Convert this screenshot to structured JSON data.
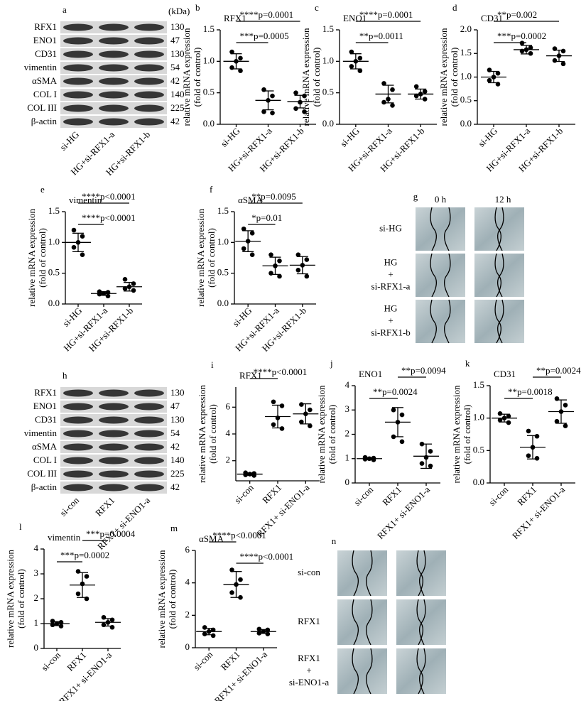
{
  "blots": [
    {
      "panel": "a",
      "unit": "(kDa)",
      "rows": [
        "RFX1",
        "ENO1",
        "CD31",
        "vimentin",
        "αSMA",
        "COL I",
        "COL III",
        "β-actin"
      ],
      "kda": [
        "130",
        "47",
        "130",
        "54",
        "42",
        "140",
        "225",
        "42"
      ],
      "lanes": [
        "si-HG",
        "HG+si-RFX1-a",
        "HG+si-RFX1-b"
      ]
    },
    {
      "panel": "h",
      "rows": [
        "RFX1",
        "ENO1",
        "CD31",
        "vimentin",
        "αSMA",
        "COL I",
        "COL III",
        "β-actin"
      ],
      "kda": [
        "130",
        "47",
        "130",
        "54",
        "42",
        "140",
        "225",
        "42"
      ],
      "lanes": [
        "si-con",
        "RFX1",
        "RFX1+ si-ENO1-a"
      ]
    }
  ],
  "scratch": [
    {
      "panel": "g",
      "times": [
        "0 h",
        "12 h"
      ],
      "rows": [
        [
          "si-HG"
        ],
        [
          "HG",
          "+",
          "si-RFX1-a"
        ],
        [
          "HG",
          "+",
          "si-RFX1-b"
        ]
      ]
    },
    {
      "panel": "n",
      "rows": [
        [
          "si-con"
        ],
        [
          "RFX1"
        ],
        [
          "RFX1",
          "+",
          "si-ENO1-a"
        ]
      ]
    }
  ],
  "chart_data": [
    {
      "type": "dot",
      "panel": "b",
      "title": "RFX1",
      "y_label": [
        "relative mRNA expression",
        "(fold of control)"
      ],
      "color": "#000000",
      "categories": [
        "si-HG",
        "HG+si-RFX1-a",
        "HG+si-RFX1-b"
      ],
      "values": [
        1.0,
        0.38,
        0.36
      ],
      "errors": [
        0.12,
        0.15,
        0.1
      ],
      "points": [
        [
          1.15,
          1.05,
          1.0,
          0.9,
          0.85
        ],
        [
          0.55,
          0.45,
          0.38,
          0.2,
          0.18
        ],
        [
          0.5,
          0.45,
          0.35,
          0.25,
          0.2
        ]
      ],
      "ylim": [
        0,
        1.5
      ],
      "yticks": [
        {
          "value": 0,
          "label": "0.0"
        },
        0.5,
        {
          "value": 1,
          "label": "1.0"
        },
        1.5
      ],
      "annotations": [
        "****p=0.0001",
        "***p=0.0005"
      ]
    },
    {
      "type": "dot",
      "panel": "c",
      "title": "ENO1",
      "y_label": [
        "relative mRNA expression",
        "(fold of control)"
      ],
      "color": "#000000",
      "categories": [
        "si-HG",
        "HG+si-RFX1-a",
        "HG+si-RFX1-b"
      ],
      "values": [
        1.0,
        0.48,
        0.48
      ],
      "errors": [
        0.12,
        0.14,
        0.08
      ],
      "points": [
        [
          1.15,
          1.05,
          1.0,
          0.92,
          0.85
        ],
        [
          0.65,
          0.55,
          0.4,
          0.35,
          0.3
        ],
        [
          0.6,
          0.52,
          0.48,
          0.45,
          0.4
        ]
      ],
      "ylim": [
        0,
        1.5
      ],
      "yticks": [
        {
          "value": 0,
          "label": "0.0"
        },
        0.5,
        {
          "value": 1,
          "label": "1.0"
        },
        1.5
      ],
      "annotations": [
        "****p=0.0001",
        "**p=0.0011"
      ]
    },
    {
      "type": "dot",
      "panel": "d",
      "title": "CD31",
      "y_label": [
        "relative mRNA expression",
        "(fold of control)"
      ],
      "color": "#000000",
      "categories": [
        "si-HG",
        "HG+si-RFX1-a",
        "HG+si-RFX1-b"
      ],
      "values": [
        1.0,
        1.58,
        1.45
      ],
      "errors": [
        0.12,
        0.09,
        0.12
      ],
      "points": [
        [
          1.15,
          1.08,
          1.0,
          0.93,
          0.85
        ],
        [
          1.72,
          1.62,
          1.58,
          1.55,
          1.5
        ],
        [
          1.6,
          1.55,
          1.45,
          1.35,
          1.28
        ]
      ],
      "ylim": [
        0,
        2
      ],
      "yticks": [
        {
          "value": 0,
          "label": "0.0"
        },
        0.5,
        {
          "value": 1,
          "label": "1.0"
        },
        1.5,
        {
          "value": 2,
          "label": "2.0"
        }
      ],
      "annotations": [
        "**p=0.002",
        "***p=0.0002"
      ]
    },
    {
      "type": "dot",
      "panel": "e",
      "title": "vimentin",
      "y_label": [
        "relative mRNA expression",
        "(fold of control)"
      ],
      "color": "#000000",
      "categories": [
        "si-HG",
        "HG+si-RFX1-a",
        "HG+si-RFX1-b"
      ],
      "values": [
        1.0,
        0.17,
        0.28
      ],
      "errors": [
        0.15,
        0.03,
        0.07
      ],
      "points": [
        [
          1.2,
          1.1,
          1.0,
          0.92,
          0.8
        ],
        [
          0.2,
          0.19,
          0.17,
          0.16,
          0.13
        ],
        [
          0.4,
          0.33,
          0.28,
          0.25,
          0.22
        ]
      ],
      "ylim": [
        0,
        1.5
      ],
      "yticks": [
        {
          "value": 0,
          "label": "0.0"
        },
        0.5,
        {
          "value": 1,
          "label": "1.0"
        },
        1.5
      ],
      "annotations": [
        "****p<0.0001",
        "****p<0.0001"
      ]
    },
    {
      "type": "dot",
      "panel": "f",
      "title": "αSMA",
      "y_label": [
        "relative mRNA expression",
        "(fold of control)"
      ],
      "color": "#000000",
      "categories": [
        "si-HG",
        "HG+si-RFX1-a",
        "HG+si-RFX1-b"
      ],
      "values": [
        1.02,
        0.62,
        0.63
      ],
      "errors": [
        0.17,
        0.14,
        0.14
      ],
      "points": [
        [
          1.22,
          1.15,
          1.02,
          0.9,
          0.8
        ],
        [
          0.8,
          0.7,
          0.62,
          0.5,
          0.45
        ],
        [
          0.8,
          0.72,
          0.63,
          0.55,
          0.45
        ]
      ],
      "ylim": [
        0,
        1.5
      ],
      "yticks": [
        {
          "value": 0,
          "label": "0.0"
        },
        0.5,
        {
          "value": 1,
          "label": "1.0"
        },
        1.5
      ],
      "annotations": [
        "**p=0.0095",
        "*p=0.01"
      ]
    },
    {
      "type": "dot",
      "panel": "i",
      "title": "RFX1",
      "y_label": [
        "relative mRNA expression",
        "(fold of control)"
      ],
      "color": "#000000",
      "categories": [
        "si-con",
        "RFX1",
        "RFX1+ si-ENO1-a"
      ],
      "values": [
        1.0,
        5.3,
        5.5
      ],
      "errors": [
        0.08,
        0.85,
        0.75
      ],
      "points": [
        [
          1.1,
          1.05,
          1.0,
          0.95,
          0.9
        ],
        [
          6.4,
          6.1,
          5.2,
          4.7,
          4.4
        ],
        [
          6.2,
          5.8,
          5.5,
          4.9,
          4.6
        ]
      ],
      "ylim": [
        0.5,
        7.5
      ],
      "yticks": [
        2,
        4,
        6
      ],
      "annotations": [
        "****p<0.0001"
      ]
    },
    {
      "type": "dot",
      "panel": "j",
      "title": "ENO1",
      "y_label": [
        "relative mRNA expression",
        "(fold of control)"
      ],
      "color": "#000000",
      "categories": [
        "si-con",
        "RFX1",
        "RFX1+ si-ENO1-a"
      ],
      "values": [
        1.0,
        2.5,
        1.1
      ],
      "errors": [
        0.04,
        0.6,
        0.5
      ],
      "points": [
        [
          1.05,
          1.02,
          1.0,
          0.98,
          0.95
        ],
        [
          3.0,
          2.8,
          2.5,
          1.9,
          1.7
        ],
        [
          1.6,
          1.3,
          1.05,
          0.8,
          0.7
        ]
      ],
      "ylim": [
        0,
        4
      ],
      "yticks": [
        0,
        1,
        2,
        3,
        4
      ],
      "annotations": [
        "**p=0.0094",
        "**p=0.0024"
      ]
    },
    {
      "type": "dot",
      "panel": "k",
      "title": "CD31",
      "y_label": [
        "relative mRNA expression",
        "(fold of control)"
      ],
      "color": "#000000",
      "categories": [
        "si-con",
        "RFX1",
        "RFX1+ si-ENO1-a"
      ],
      "values": [
        1.0,
        0.55,
        1.1
      ],
      "errors": [
        0.06,
        0.18,
        0.18
      ],
      "points": [
        [
          1.07,
          1.03,
          1.0,
          0.97,
          0.93
        ],
        [
          0.8,
          0.72,
          0.55,
          0.42,
          0.38
        ],
        [
          1.3,
          1.2,
          1.1,
          0.95,
          0.88
        ]
      ],
      "ylim": [
        0,
        1.5
      ],
      "yticks": [
        {
          "value": 0,
          "label": "0.0"
        },
        0.5,
        {
          "value": 1,
          "label": "1.0"
        },
        1.5
      ],
      "annotations": [
        "**p=0.0024",
        "**p=0.0018"
      ]
    },
    {
      "type": "dot",
      "panel": "l",
      "title": "vimentin",
      "y_label": [
        "relative mRNA expression",
        "(fold of control)"
      ],
      "color": "#000000",
      "categories": [
        "si-con",
        "RFX1",
        "RFX1+ si-ENO1-a"
      ],
      "values": [
        1.0,
        2.55,
        1.05
      ],
      "errors": [
        0.08,
        0.5,
        0.15
      ],
      "points": [
        [
          1.1,
          1.05,
          1.0,
          0.95,
          0.9
        ],
        [
          3.1,
          2.9,
          2.6,
          2.2,
          2.0
        ],
        [
          1.25,
          1.15,
          1.05,
          0.95,
          0.85
        ]
      ],
      "ylim": [
        0,
        4
      ],
      "yticks": [
        0,
        1,
        2,
        3,
        4
      ],
      "annotations": [
        "***p=0.0004",
        "***p=0.0002"
      ]
    },
    {
      "type": "dot",
      "panel": "m",
      "title": "αSMA",
      "y_label": [
        "relative mRNA expression",
        "(fold of control)"
      ],
      "color": "#000000",
      "categories": [
        "si-con",
        "RFX1",
        "RFX1+ si-ENO1-a"
      ],
      "values": [
        1.0,
        3.9,
        1.0
      ],
      "errors": [
        0.2,
        0.8,
        0.12
      ],
      "points": [
        [
          1.25,
          1.1,
          1.0,
          0.85,
          0.75
        ],
        [
          4.8,
          4.2,
          3.9,
          3.4,
          3.1
        ],
        [
          1.15,
          1.1,
          1.0,
          0.9,
          0.85
        ]
      ],
      "ylim": [
        0,
        6
      ],
      "yticks": [
        0,
        2,
        4,
        6
      ],
      "annotations": [
        "****p<0.0001",
        "****p<0.0001"
      ]
    }
  ]
}
